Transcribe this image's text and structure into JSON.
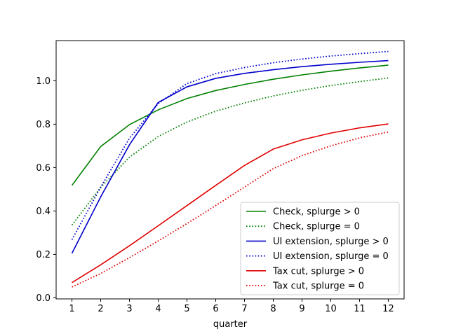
{
  "chart_data": {
    "type": "line",
    "title": "",
    "xlabel": "quarter",
    "ylabel": "",
    "x": [
      1,
      2,
      3,
      4,
      5,
      6,
      7,
      8,
      9,
      10,
      11,
      12
    ],
    "xticks": [
      "1",
      "2",
      "3",
      "4",
      "5",
      "6",
      "7",
      "8",
      "9",
      "10",
      "11",
      "12"
    ],
    "yticks": [
      "0.0",
      "0.2",
      "0.4",
      "0.6",
      "0.8",
      "1.0"
    ],
    "ytick_values": [
      0.0,
      0.2,
      0.4,
      0.6,
      0.8,
      1.0
    ],
    "xlim": [
      0.45,
      12.55
    ],
    "ylim": [
      -0.005,
      1.185
    ],
    "grid": false,
    "legend_position": "lower-right",
    "series": [
      {
        "name": "Check, splurge > 0",
        "color": "#008000",
        "style": "solid",
        "values": [
          0.518,
          0.697,
          0.798,
          0.866,
          0.918,
          0.955,
          0.983,
          1.007,
          1.027,
          1.044,
          1.059,
          1.072
        ]
      },
      {
        "name": "Check, splurge = 0",
        "color": "#008000",
        "style": "dotted",
        "values": [
          0.335,
          0.509,
          0.648,
          0.743,
          0.81,
          0.86,
          0.898,
          0.93,
          0.956,
          0.978,
          0.996,
          1.013
        ]
      },
      {
        "name": "UI extension, splurge > 0",
        "color": "#0000cc",
        "style": "solid",
        "values": [
          0.205,
          0.465,
          0.705,
          0.9,
          0.972,
          1.011,
          1.034,
          1.051,
          1.065,
          1.076,
          1.085,
          1.093
        ]
      },
      {
        "name": "UI extension, splurge = 0",
        "color": "#0000cc",
        "style": "dotted",
        "values": [
          0.268,
          0.51,
          0.735,
          0.895,
          0.987,
          1.033,
          1.061,
          1.083,
          1.1,
          1.114,
          1.125,
          1.135
        ]
      },
      {
        "name": "Tax cut, splurge > 0",
        "color": "#e00000",
        "style": "solid",
        "values": [
          0.07,
          0.152,
          0.24,
          0.332,
          0.425,
          0.518,
          0.61,
          0.685,
          0.728,
          0.759,
          0.783,
          0.801
        ]
      },
      {
        "name": "Tax cut, splurge = 0",
        "color": "#e00000",
        "style": "dotted",
        "values": [
          0.05,
          0.112,
          0.185,
          0.262,
          0.342,
          0.425,
          0.51,
          0.595,
          0.655,
          0.7,
          0.737,
          0.764
        ]
      }
    ]
  }
}
